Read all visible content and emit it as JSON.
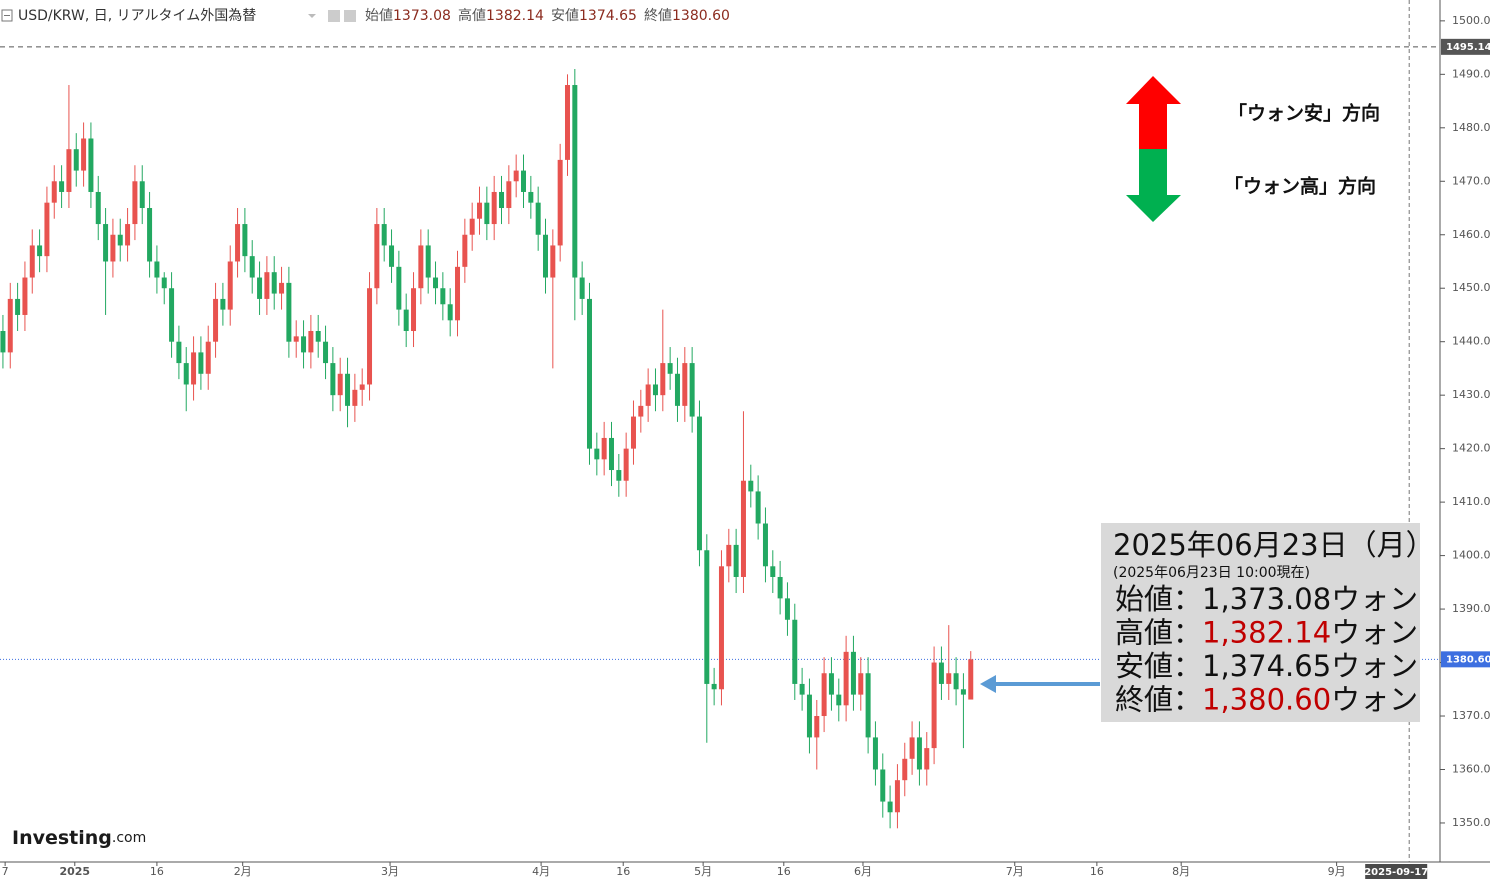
{
  "chart_data": {
    "type": "candlestick",
    "title": "USD/KRW, 日, リアルタイム外国為替",
    "ohlc_header": [
      {
        "label": "始値",
        "value": "1373.08"
      },
      {
        "label": "高値",
        "value": "1382.14"
      },
      {
        "label": "安値",
        "value": "1374.65"
      },
      {
        "label": "終値",
        "value": "1380.60"
      }
    ],
    "up_color": "#e8534f",
    "down_color": "#22a861",
    "open": [
      1442,
      1438,
      1448,
      1445,
      1452,
      1458,
      1456,
      1466,
      1470,
      1468,
      1476,
      1472,
      1478,
      1468,
      1462,
      1455,
      1460,
      1458,
      1462,
      1470,
      1465,
      1455,
      1452,
      1450,
      1440,
      1436,
      1432,
      1438,
      1434,
      1440,
      1448,
      1446,
      1455,
      1462,
      1456,
      1452,
      1448,
      1453,
      1449,
      1451,
      1440,
      1441,
      1438,
      1442,
      1440,
      1436,
      1430,
      1434,
      1428,
      1431,
      1432,
      1450,
      1462,
      1458,
      1454,
      1446,
      1442,
      1450,
      1458,
      1452,
      1450,
      1447,
      1444,
      1454,
      1460,
      1463,
      1466,
      1462,
      1468,
      1465,
      1470,
      1472,
      1468,
      1466,
      1460,
      1452,
      1458,
      1474,
      1488,
      1452,
      1448,
      1420,
      1418,
      1422,
      1416,
      1414,
      1420,
      1426,
      1428,
      1432,
      1430,
      1436,
      1434,
      1428,
      1436,
      1426,
      1401,
      1376,
      1375,
      1398,
      1402,
      1396,
      1414,
      1412,
      1406,
      1398,
      1396,
      1392,
      1388,
      1376,
      1374,
      1366,
      1370,
      1378,
      1374,
      1372,
      1382,
      1374,
      1378,
      1366,
      1360,
      1354,
      1352,
      1358,
      1362,
      1366,
      1360,
      1364,
      1380,
      1376,
      1378,
      1375,
      1373.08
    ],
    "high": [
      1445,
      1451,
      1451,
      1455,
      1461,
      1461,
      1469,
      1473,
      1473,
      1488,
      1479,
      1481,
      1481,
      1471,
      1465,
      1463,
      1463,
      1465,
      1473,
      1473,
      1468,
      1458,
      1453,
      1453,
      1443,
      1439,
      1441,
      1441,
      1443,
      1451,
      1451,
      1458,
      1465,
      1465,
      1459,
      1455,
      1456,
      1456,
      1454,
      1454,
      1444,
      1444,
      1445,
      1445,
      1443,
      1439,
      1437,
      1437,
      1434,
      1435,
      1453,
      1465,
      1465,
      1461,
      1457,
      1449,
      1453,
      1461,
      1461,
      1455,
      1453,
      1450,
      1457,
      1463,
      1466,
      1469,
      1469,
      1471,
      1471,
      1473,
      1475,
      1475,
      1471,
      1469,
      1463,
      1461,
      1477,
      1490,
      1491,
      1455,
      1451,
      1423,
      1425,
      1425,
      1419,
      1423,
      1429,
      1431,
      1435,
      1435,
      1446,
      1439,
      1437,
      1439,
      1439,
      1429,
      1404,
      1379,
      1401,
      1405,
      1405,
      1427,
      1417,
      1415,
      1409,
      1401,
      1399,
      1395,
      1391,
      1379,
      1377,
      1373,
      1381,
      1381,
      1377,
      1385,
      1385,
      1381,
      1381,
      1369,
      1363,
      1357,
      1361,
      1365,
      1369,
      1369,
      1367,
      1383,
      1383,
      1387,
      1381,
      1378,
      1382.14
    ],
    "low": [
      1435,
      1435,
      1442,
      1442,
      1449,
      1453,
      1453,
      1463,
      1465,
      1465,
      1469,
      1469,
      1465,
      1459,
      1445,
      1452,
      1455,
      1455,
      1459,
      1462,
      1452,
      1449,
      1447,
      1437,
      1433,
      1427,
      1429,
      1431,
      1431,
      1437,
      1443,
      1443,
      1452,
      1453,
      1449,
      1445,
      1445,
      1446,
      1446,
      1437,
      1437,
      1435,
      1435,
      1437,
      1433,
      1427,
      1427,
      1424,
      1425,
      1428,
      1429,
      1447,
      1455,
      1451,
      1443,
      1439,
      1439,
      1447,
      1449,
      1447,
      1444,
      1441,
      1441,
      1451,
      1457,
      1460,
      1459,
      1459,
      1462,
      1462,
      1467,
      1465,
      1463,
      1457,
      1449,
      1435,
      1455,
      1471,
      1444,
      1445,
      1417,
      1415,
      1415,
      1413,
      1411,
      1411,
      1417,
      1423,
      1425,
      1427,
      1427,
      1431,
      1425,
      1425,
      1423,
      1398,
      1365,
      1372,
      1372,
      1395,
      1393,
      1393,
      1409,
      1403,
      1395,
      1393,
      1389,
      1385,
      1373,
      1371,
      1363,
      1360,
      1367,
      1371,
      1369,
      1369,
      1371,
      1371,
      1363,
      1357,
      1351,
      1349,
      1349,
      1355,
      1359,
      1357,
      1357,
      1361,
      1373,
      1373,
      1372,
      1364,
      1374.65
    ],
    "close": [
      1438,
      1448,
      1445,
      1452,
      1458,
      1456,
      1466,
      1470,
      1468,
      1476,
      1472,
      1478,
      1468,
      1462,
      1455,
      1460,
      1458,
      1462,
      1470,
      1465,
      1455,
      1452,
      1450,
      1440,
      1436,
      1432,
      1438,
      1434,
      1440,
      1448,
      1446,
      1455,
      1462,
      1456,
      1452,
      1448,
      1453,
      1449,
      1451,
      1440,
      1441,
      1438,
      1442,
      1440,
      1436,
      1430,
      1434,
      1428,
      1431,
      1432,
      1450,
      1462,
      1458,
      1454,
      1446,
      1442,
      1450,
      1458,
      1452,
      1450,
      1447,
      1444,
      1454,
      1460,
      1463,
      1466,
      1462,
      1468,
      1465,
      1470,
      1472,
      1468,
      1466,
      1460,
      1452,
      1458,
      1474,
      1488,
      1452,
      1448,
      1420,
      1418,
      1422,
      1416,
      1414,
      1420,
      1426,
      1428,
      1432,
      1430,
      1436,
      1434,
      1428,
      1436,
      1426,
      1401,
      1376,
      1375,
      1398,
      1402,
      1396,
      1414,
      1412,
      1406,
      1398,
      1396,
      1392,
      1388,
      1376,
      1374,
      1366,
      1370,
      1378,
      1374,
      1372,
      1382,
      1374,
      1378,
      1366,
      1360,
      1354,
      1352,
      1358,
      1362,
      1366,
      1360,
      1364,
      1380,
      1376,
      1378,
      1375,
      1374,
      1380.6
    ],
    "xlim": [
      -0.4,
      196
    ],
    "xticks": [
      {
        "value": 0.3,
        "label": "7"
      },
      {
        "value": 9.8,
        "label": "2025"
      },
      {
        "value": 21,
        "label": "16"
      },
      {
        "value": 32.7,
        "label": "2月"
      },
      {
        "value": 52.8,
        "label": "3月"
      },
      {
        "value": 73.4,
        "label": "4月"
      },
      {
        "value": 84.6,
        "label": "16"
      },
      {
        "value": 95.5,
        "label": "5月"
      },
      {
        "value": 106.5,
        "label": "16"
      },
      {
        "value": 117.3,
        "label": "6月"
      },
      {
        "value": 138,
        "label": "7月"
      },
      {
        "value": 149.2,
        "label": "16"
      },
      {
        "value": 160.7,
        "label": "8月"
      },
      {
        "value": 181.9,
        "label": "9月"
      }
    ],
    "ylim": [
      1342.7,
      1503.9
    ],
    "yticks": [
      {
        "value": 1350,
        "label": "1350.00"
      },
      {
        "value": 1360,
        "label": "1360.00"
      },
      {
        "value": 1370,
        "label": "1370.00"
      },
      {
        "value": 1380,
        "label": "1380.00"
      },
      {
        "value": 1390,
        "label": "1390.00"
      },
      {
        "value": 1400,
        "label": "1400.00"
      },
      {
        "value": 1410,
        "label": "1410.00"
      },
      {
        "value": 1420,
        "label": "1420.00"
      },
      {
        "value": 1430,
        "label": "1430.00"
      },
      {
        "value": 1440,
        "label": "1440.00"
      },
      {
        "value": 1450,
        "label": "1450.00"
      },
      {
        "value": 1460,
        "label": "1460.00"
      },
      {
        "value": 1470,
        "label": "1470.00"
      },
      {
        "value": 1480,
        "label": "1480.00"
      },
      {
        "value": 1490,
        "label": "1490.00"
      },
      {
        "value": 1500,
        "label": "1500.00"
      }
    ],
    "price_lines": [
      {
        "value": 1495.14,
        "label": "1495.14",
        "color": "#555555",
        "style": "dashed"
      },
      {
        "value": 1380.6,
        "label": "1380.60",
        "color": "#3d6fe0",
        "style": "dotted"
      }
    ],
    "crosshair": {
      "value": 191.8,
      "label": "2025-09-17"
    },
    "annotations": [
      "「ウォン安」方向",
      "「ウォン高」方向"
    ],
    "info_box": {
      "date": "2025年06月23日（月）",
      "as_of": "(2025年06月23日 10:00現在)",
      "rows": [
        {
          "name": "始値：",
          "value": "1,373.08",
          "unit": "ウォン",
          "highlight": false
        },
        {
          "name": "高値：",
          "value": "1,382.14",
          "unit": "ウォン",
          "highlight": true
        },
        {
          "name": "安値：",
          "value": "1,374.65",
          "unit": "ウォン",
          "highlight": false
        },
        {
          "name": "終値：",
          "value": "1,380.60",
          "unit": "ウォン",
          "highlight": true
        }
      ]
    },
    "logo": [
      "Investing",
      ".com"
    ]
  }
}
